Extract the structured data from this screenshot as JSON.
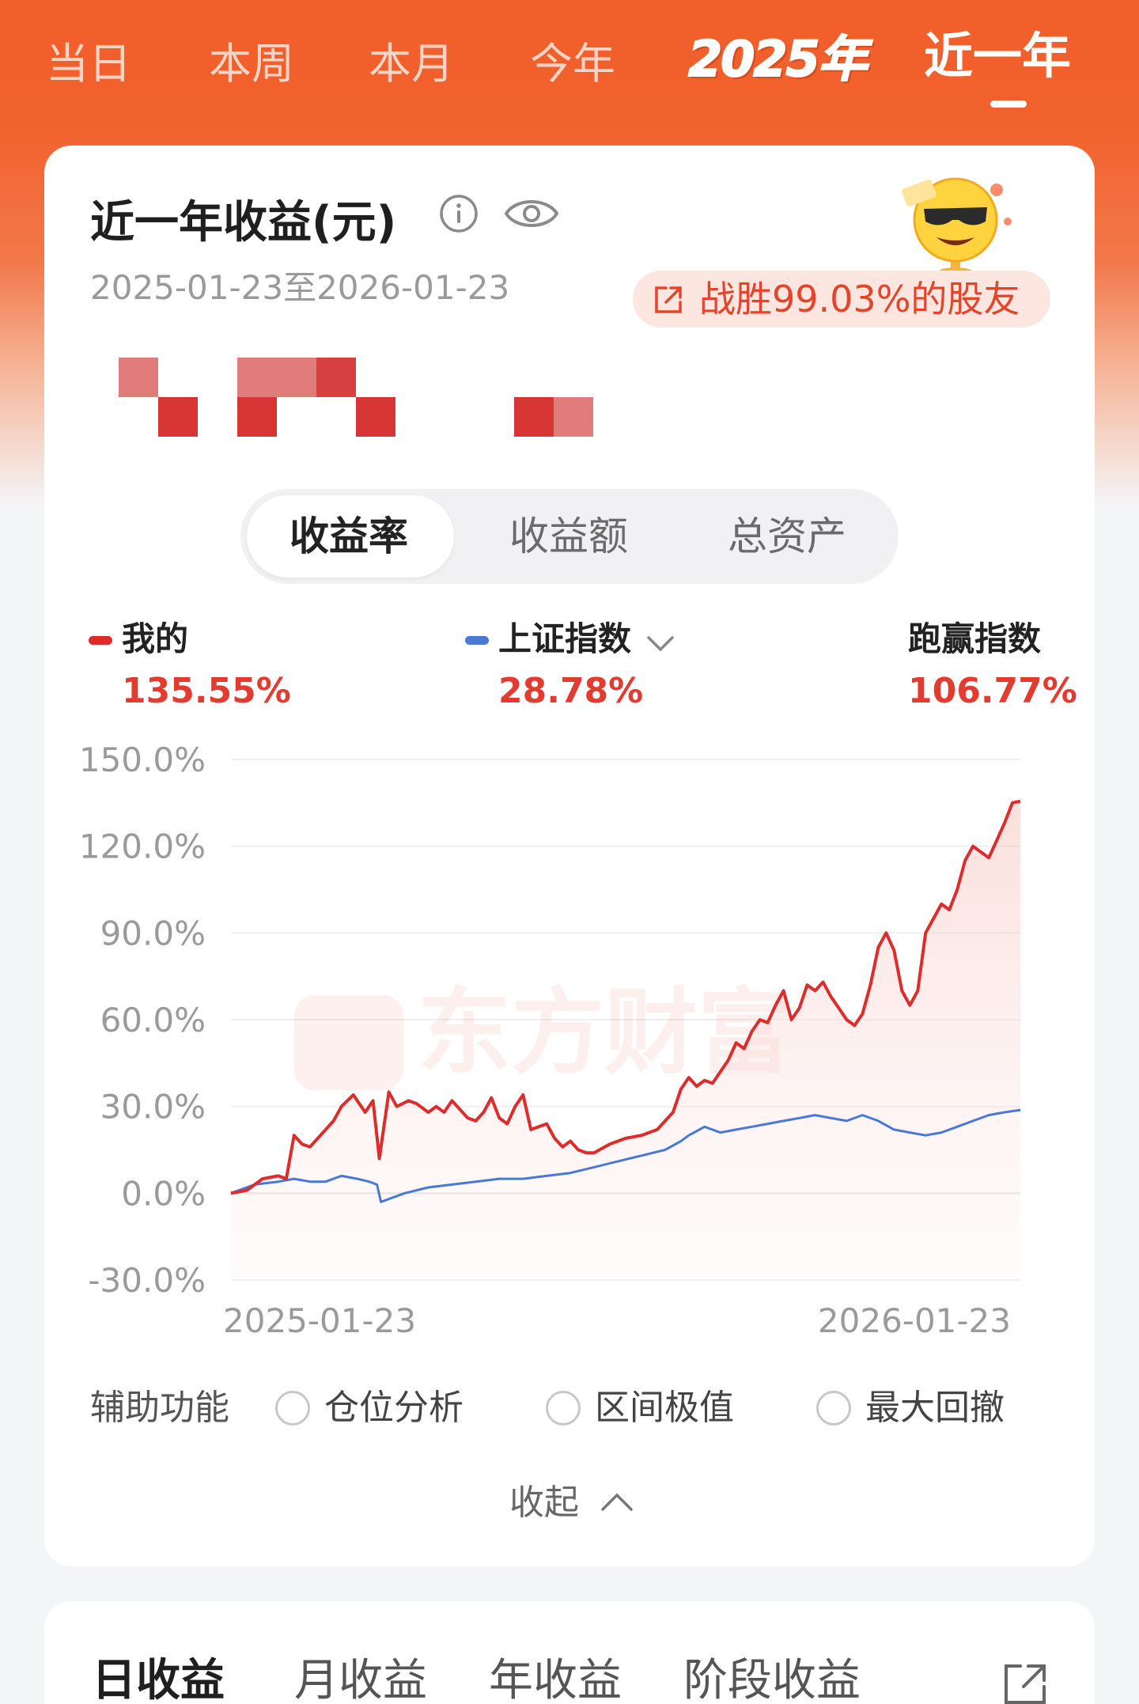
{
  "tabs": {
    "items": [
      "当日",
      "本周",
      "本月",
      "今年",
      "2025年",
      "近一年"
    ],
    "active_index": 5
  },
  "summary": {
    "title": "近一年收益(元)",
    "date_range": "2025-01-23至2026-01-23",
    "beat_text": "战胜99.03%的股友",
    "amount_masked": true
  },
  "segments": {
    "items": [
      "收益率",
      "收益额",
      "总资产"
    ],
    "active_index": 0
  },
  "legend": {
    "mine_label": "我的",
    "mine_value": "135.55%",
    "index_label": "上证指数",
    "index_value": "28.78%",
    "beat_index_label": "跑赢指数",
    "beat_index_value": "106.77%"
  },
  "colors": {
    "brand_orange": "#f1602b",
    "mine_line": "#dd2c2c",
    "index_line": "#4a78d6"
  },
  "chart_data": {
    "type": "line",
    "x_start_label": "2025-01-23",
    "x_end_label": "2026-01-23",
    "ylim": [
      -30,
      150
    ],
    "yticks": [
      "150.0%",
      "120.0%",
      "90.0%",
      "60.0%",
      "30.0%",
      "0.0%",
      "-30.0%"
    ],
    "series": [
      {
        "name": "我的",
        "x": [
          0,
          0.02,
          0.04,
          0.06,
          0.07,
          0.08,
          0.09,
          0.1,
          0.11,
          0.12,
          0.13,
          0.14,
          0.155,
          0.17,
          0.18,
          0.188,
          0.2,
          0.21,
          0.225,
          0.235,
          0.25,
          0.26,
          0.27,
          0.28,
          0.29,
          0.3,
          0.31,
          0.32,
          0.33,
          0.34,
          0.35,
          0.36,
          0.37,
          0.38,
          0.39,
          0.4,
          0.41,
          0.42,
          0.43,
          0.44,
          0.45,
          0.46,
          0.48,
          0.5,
          0.52,
          0.54,
          0.56,
          0.57,
          0.58,
          0.59,
          0.6,
          0.61,
          0.62,
          0.63,
          0.64,
          0.65,
          0.66,
          0.67,
          0.68,
          0.69,
          0.7,
          0.71,
          0.72,
          0.73,
          0.74,
          0.75,
          0.76,
          0.77,
          0.78,
          0.79,
          0.8,
          0.81,
          0.82,
          0.83,
          0.84,
          0.85,
          0.86,
          0.87,
          0.88,
          0.89,
          0.9,
          0.91,
          0.92,
          0.93,
          0.94,
          0.95,
          0.96,
          0.97,
          0.98,
          0.99,
          1.0
        ],
        "values": [
          0,
          1,
          5,
          6,
          5,
          20,
          17,
          16,
          19,
          22,
          25,
          30,
          34,
          28,
          32,
          12,
          35,
          30,
          32,
          31,
          28,
          30,
          28,
          32,
          29,
          26,
          25,
          28,
          33,
          26,
          24,
          30,
          34,
          22,
          23,
          24,
          19,
          16,
          18,
          15,
          14,
          14,
          17,
          19,
          20,
          22,
          28,
          36,
          40,
          37,
          39,
          38,
          42,
          46,
          52,
          50,
          56,
          60,
          59,
          65,
          70,
          60,
          64,
          72,
          70,
          73,
          68,
          64,
          60,
          58,
          62,
          72,
          85,
          90,
          84,
          70,
          65,
          70,
          90,
          95,
          100,
          98,
          105,
          115,
          120,
          118,
          116,
          122,
          128,
          135,
          135.55
        ]
      },
      {
        "name": "上证指数",
        "x": [
          0,
          0.03,
          0.06,
          0.08,
          0.1,
          0.12,
          0.14,
          0.16,
          0.175,
          0.185,
          0.19,
          0.2,
          0.22,
          0.25,
          0.28,
          0.31,
          0.34,
          0.37,
          0.4,
          0.43,
          0.46,
          0.49,
          0.52,
          0.55,
          0.57,
          0.58,
          0.6,
          0.62,
          0.64,
          0.66,
          0.68,
          0.7,
          0.72,
          0.74,
          0.76,
          0.78,
          0.8,
          0.82,
          0.84,
          0.86,
          0.88,
          0.9,
          0.92,
          0.94,
          0.96,
          0.98,
          1.0
        ],
        "values": [
          0,
          3,
          4,
          5,
          4,
          4,
          6,
          5,
          4,
          3,
          -3,
          -2,
          0,
          2,
          3,
          4,
          5,
          5,
          6,
          7,
          9,
          11,
          13,
          15,
          18,
          20,
          23,
          21,
          22,
          23,
          24,
          25,
          26,
          27,
          26,
          25,
          27,
          25,
          22,
          21,
          20,
          21,
          23,
          25,
          27,
          28,
          28.78
        ]
      }
    ]
  },
  "watermark": "东方财富",
  "aux": {
    "label": "辅助功能",
    "options": [
      "仓位分析",
      "区间极值",
      "最大回撤"
    ]
  },
  "collapse_label": "收起",
  "bottom_tabs": {
    "items": [
      "日收益",
      "月收益",
      "年收益",
      "阶段收益"
    ],
    "active_index": 0
  }
}
